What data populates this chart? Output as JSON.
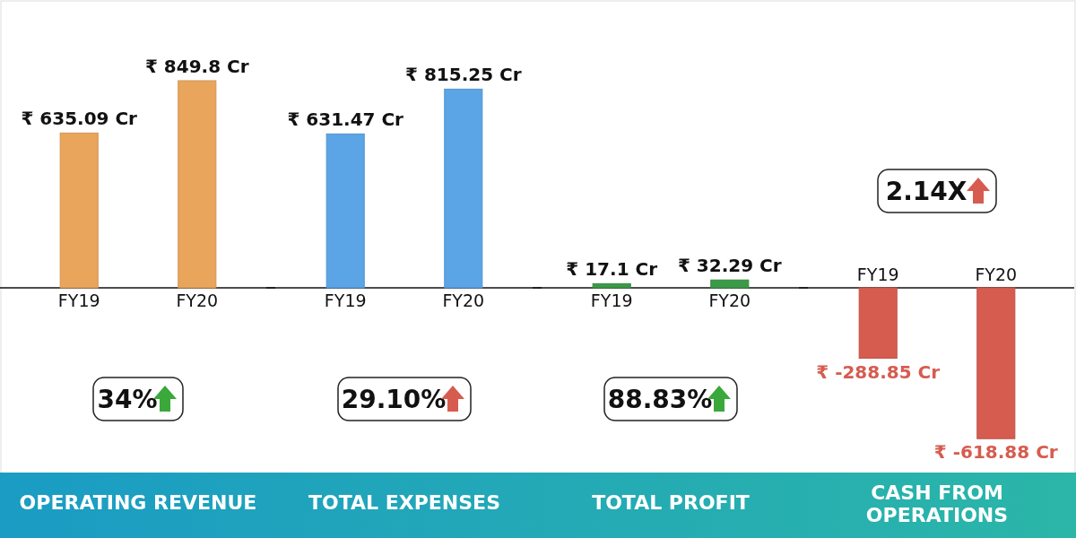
{
  "chart_data": [
    {
      "type": "bar",
      "title": "OPERATING REVENUE",
      "categories": [
        "FY19",
        "FY20"
      ],
      "values": [
        635.09,
        849.8
      ],
      "color": "#e9a55c",
      "value_labels": [
        "₹ 635.09 Cr",
        "₹ 849.8 Cr"
      ],
      "annotations": [
        "34%"
      ]
    },
    {
      "type": "bar",
      "title": "TOTAL EXPENSES",
      "categories": [
        "FY19",
        "FY20"
      ],
      "values": [
        631.47,
        815.25
      ],
      "color": "#5ba4e6",
      "value_labels": [
        "₹ 631.47 Cr",
        "₹ 815.25 Cr"
      ],
      "annotations": [
        "29.10%"
      ]
    },
    {
      "type": "bar",
      "title": "TOTAL PROFIT",
      "categories": [
        "FY19",
        "FY20"
      ],
      "values": [
        17.1,
        32.29
      ],
      "color": "#3a9a47",
      "value_labels": [
        "₹ 17.1 Cr",
        "₹ 32.29 Cr"
      ],
      "annotations": [
        "88.83%"
      ]
    },
    {
      "type": "bar",
      "title": "CASH FROM OPERATIONS",
      "categories": [
        "FY19",
        "FY20"
      ],
      "values": [
        -288.85,
        -618.88
      ],
      "color": "#d65c50",
      "value_labels": [
        "₹ -288.85 Cr",
        "₹ -618.88 Cr"
      ],
      "annotations": [
        "2.14X"
      ]
    }
  ]
}
